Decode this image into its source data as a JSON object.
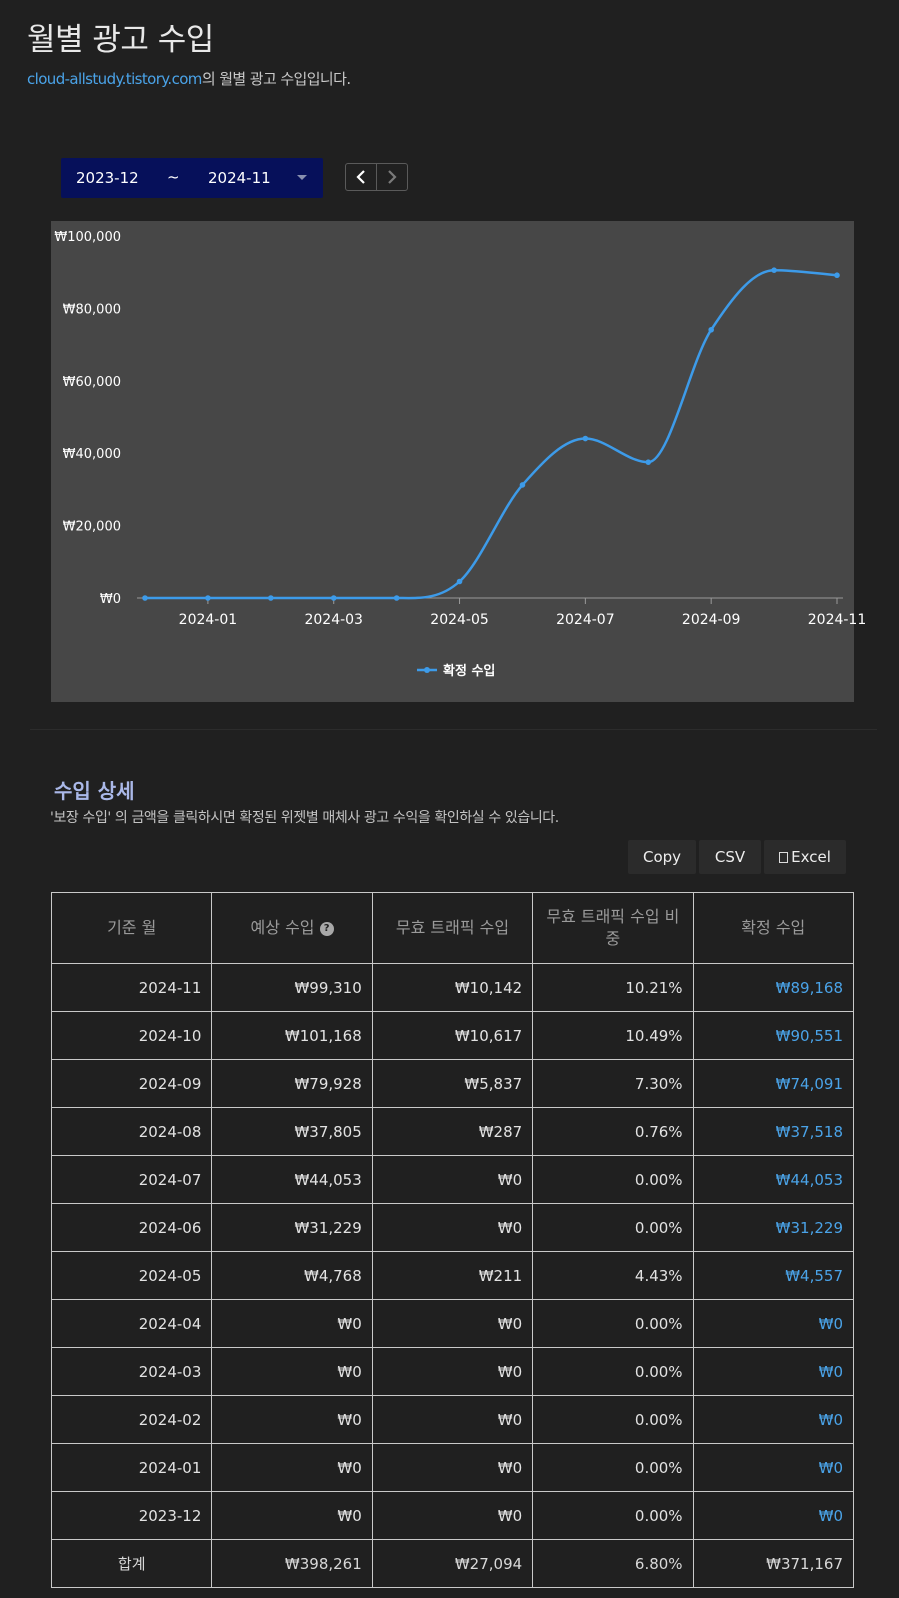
{
  "header": {
    "title": "월별 광고 수입",
    "site_link": "cloud-allstudy.tistory.com",
    "subtitle_suffix": "의 월별 광고 수입입니다."
  },
  "range": {
    "from": "2023-12",
    "separator": "~",
    "to": "2024-11"
  },
  "pager": {
    "prev_icon": "chevron-left-icon",
    "next_icon": "chevron-right-icon"
  },
  "chart_data": {
    "type": "line",
    "x": [
      "2023-12",
      "2024-01",
      "2024-02",
      "2024-03",
      "2024-04",
      "2024-05",
      "2024-06",
      "2024-07",
      "2024-08",
      "2024-09",
      "2024-10",
      "2024-11"
    ],
    "series": [
      {
        "name": "확정 수입",
        "values": [
          0,
          0,
          0,
          0,
          0,
          4557,
          31229,
          44053,
          37518,
          74091,
          90551,
          89168
        ]
      }
    ],
    "x_ticks": [
      "2024-01",
      "2024-03",
      "2024-05",
      "2024-07",
      "2024-09",
      "2024-11"
    ],
    "y_ticks": [
      "₩0",
      "₩20,000",
      "₩40,000",
      "₩60,000",
      "₩80,000",
      "₩100,000"
    ],
    "ylim": [
      0,
      100000
    ],
    "legend_position": "bottom",
    "line_color": "#3d9be9",
    "background_color": "#474747"
  },
  "details": {
    "title": "수입 상세",
    "description": "'보장 수입' 의 금액을 클릭하시면 확정된 위젯별 매체사 광고 수익을 확인하실 수 있습니다.",
    "buttons": {
      "copy": "Copy",
      "csv": "CSV",
      "excel": "Excel"
    },
    "columns": [
      "기준 월",
      "예상 수입",
      "무효 트래픽 수입",
      "무효 트래픽 수입 비중",
      "확정 수입"
    ],
    "rows": [
      [
        "2024-11",
        "₩99,310",
        "₩10,142",
        "10.21%",
        "₩89,168"
      ],
      [
        "2024-10",
        "₩101,168",
        "₩10,617",
        "10.49%",
        "₩90,551"
      ],
      [
        "2024-09",
        "₩79,928",
        "₩5,837",
        "7.30%",
        "₩74,091"
      ],
      [
        "2024-08",
        "₩37,805",
        "₩287",
        "0.76%",
        "₩37,518"
      ],
      [
        "2024-07",
        "₩44,053",
        "₩0",
        "0.00%",
        "₩44,053"
      ],
      [
        "2024-06",
        "₩31,229",
        "₩0",
        "0.00%",
        "₩31,229"
      ],
      [
        "2024-05",
        "₩4,768",
        "₩211",
        "4.43%",
        "₩4,557"
      ],
      [
        "2024-04",
        "₩0",
        "₩0",
        "0.00%",
        "₩0"
      ],
      [
        "2024-03",
        "₩0",
        "₩0",
        "0.00%",
        "₩0"
      ],
      [
        "2024-02",
        "₩0",
        "₩0",
        "0.00%",
        "₩0"
      ],
      [
        "2024-01",
        "₩0",
        "₩0",
        "0.00%",
        "₩0"
      ],
      [
        "2023-12",
        "₩0",
        "₩0",
        "0.00%",
        "₩0"
      ]
    ],
    "total": [
      "합계",
      "₩398,261",
      "₩27,094",
      "6.80%",
      "₩371,167"
    ]
  }
}
